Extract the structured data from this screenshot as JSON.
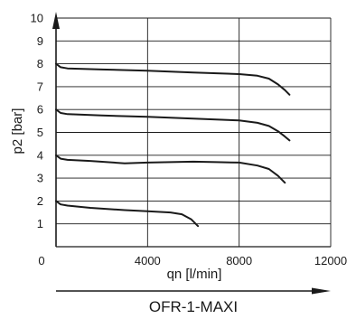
{
  "chart_data": {
    "type": "line",
    "title": "OFR-1-MAXI",
    "xlabel": "qn [l/min]",
    "ylabel": "p2 [bar]",
    "xlim": [
      0,
      12000
    ],
    "ylim": [
      0,
      10
    ],
    "x_ticks": [
      "0",
      "4000",
      "8000",
      "12000"
    ],
    "y_ticks": [
      "1",
      "2",
      "3",
      "4",
      "5",
      "6",
      "7",
      "8",
      "9",
      "10"
    ],
    "grid": true,
    "series": [
      {
        "x": [
          0,
          200,
          500,
          2000,
          4000,
          6000,
          8000,
          8800,
          9300,
          9700,
          10000,
          10200
        ],
        "y": [
          8.0,
          7.85,
          7.8,
          7.75,
          7.7,
          7.62,
          7.55,
          7.48,
          7.35,
          7.1,
          6.85,
          6.65
        ]
      },
      {
        "x": [
          0,
          200,
          500,
          2000,
          4000,
          6000,
          8000,
          8800,
          9300,
          9700,
          10000,
          10200
        ],
        "y": [
          6.0,
          5.85,
          5.8,
          5.74,
          5.68,
          5.6,
          5.52,
          5.42,
          5.28,
          5.05,
          4.82,
          4.65
        ]
      },
      {
        "x": [
          0,
          200,
          500,
          1500,
          3000,
          4000,
          5000,
          6000,
          7000,
          8000,
          8800,
          9300,
          9700,
          10000
        ],
        "y": [
          4.0,
          3.85,
          3.8,
          3.75,
          3.65,
          3.68,
          3.7,
          3.72,
          3.7,
          3.68,
          3.55,
          3.4,
          3.1,
          2.8
        ]
      },
      {
        "x": [
          0,
          200,
          500,
          1500,
          3000,
          4000,
          5000,
          5500,
          5900,
          6200
        ],
        "y": [
          2.0,
          1.85,
          1.8,
          1.7,
          1.6,
          1.55,
          1.5,
          1.42,
          1.2,
          0.9
        ]
      }
    ]
  }
}
